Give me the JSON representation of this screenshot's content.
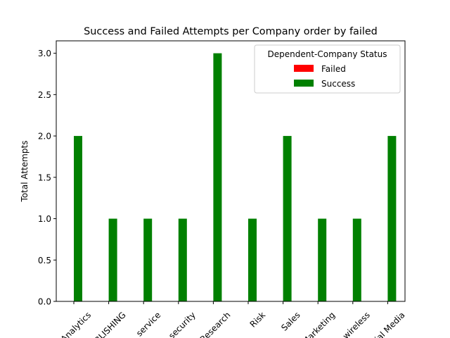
{
  "chart_data": {
    "type": "bar",
    "title": "Success and Failed Attempts per Company order by failed",
    "xlabel": "",
    "ylabel": "Total Attempts",
    "categories": [
      "Analytics",
      "PUBLISHING",
      "service",
      "security",
      "Research",
      "Risk",
      "Sales",
      "Marketing",
      "wireless",
      "Social Media"
    ],
    "series": [
      {
        "name": "Failed",
        "color": "#ff0000",
        "values": [
          0,
          0,
          0,
          0,
          0,
          0,
          0,
          0,
          0,
          0
        ]
      },
      {
        "name": "Success",
        "color": "#008000",
        "values": [
          2,
          1,
          1,
          1,
          3,
          1,
          2,
          1,
          1,
          2
        ]
      }
    ],
    "ylim": [
      0,
      3.15
    ],
    "yticks": [
      "0.0",
      "0.5",
      "1.0",
      "1.5",
      "2.0",
      "2.5",
      "3.0"
    ],
    "grid": false,
    "legend": {
      "title": "Dependent-Company Status",
      "placement": "top-right"
    }
  }
}
